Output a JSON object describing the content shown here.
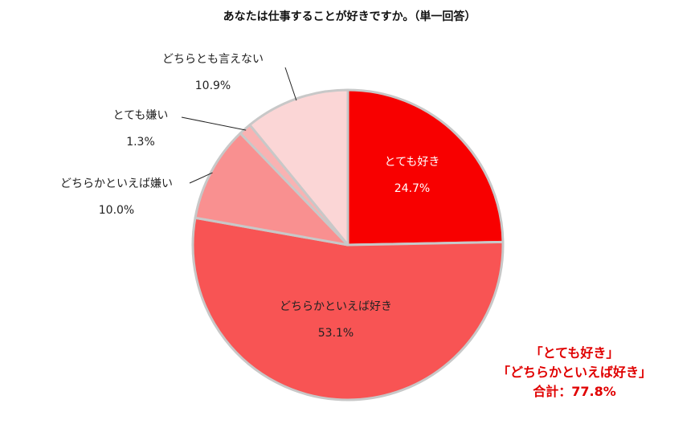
{
  "chart_data": {
    "type": "pie",
    "title": "あなたは仕事することが好きですか。（単一回答）",
    "slices": [
      {
        "label": "とても好き",
        "value": 24.7,
        "value_label": "24.7%",
        "color": "#f80000"
      },
      {
        "label": "どちらかといえば好き",
        "value": 53.1,
        "value_label": "53.1%",
        "color": "#f85454"
      },
      {
        "label": "どちらかといえば嫌い",
        "value": 10.0,
        "value_label": "10.0%",
        "color": "#f99090"
      },
      {
        "label": "とても嫌い",
        "value": 1.3,
        "value_label": "1.3%",
        "color": "#f9b2b2"
      },
      {
        "label": "どちらとも言えない",
        "value": 10.9,
        "value_label": "10.9%",
        "color": "#fbd6d6"
      }
    ],
    "start": "12 o'clock",
    "direction": "clockwise",
    "annotation": {
      "lines": [
        "「とても好き」",
        "「どちらかといえば好き」",
        "合計：77.8%"
      ],
      "color": "#e00000"
    }
  }
}
